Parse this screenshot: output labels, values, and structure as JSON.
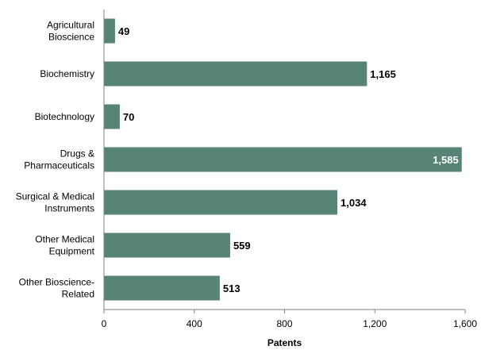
{
  "chart_data": {
    "type": "bar",
    "orientation": "horizontal",
    "categories": [
      [
        "Agricultural",
        "Bioscience"
      ],
      [
        "Biochemistry"
      ],
      [
        "Biotechnology"
      ],
      [
        "Drugs &",
        "Pharmaceuticals"
      ],
      [
        "Surgical & Medical",
        "Instruments"
      ],
      [
        "Other Medical",
        "Equipment"
      ],
      [
        "Other Bioscience-",
        "Related"
      ]
    ],
    "values": [
      49,
      1165,
      70,
      1585,
      1034,
      559,
      513
    ],
    "value_labels": [
      "49",
      "1,165",
      "70",
      "1,585",
      "1,034",
      "559",
      "513"
    ],
    "xlabel": "Patents",
    "ylabel": "",
    "xlim": [
      0,
      1600
    ],
    "xticks": [
      0,
      400,
      800,
      1200,
      1600
    ],
    "xtick_labels": [
      "0",
      "400",
      "800",
      "1,200",
      "1,600"
    ],
    "grid": false,
    "legend": "none",
    "bar_color": "#578477"
  }
}
